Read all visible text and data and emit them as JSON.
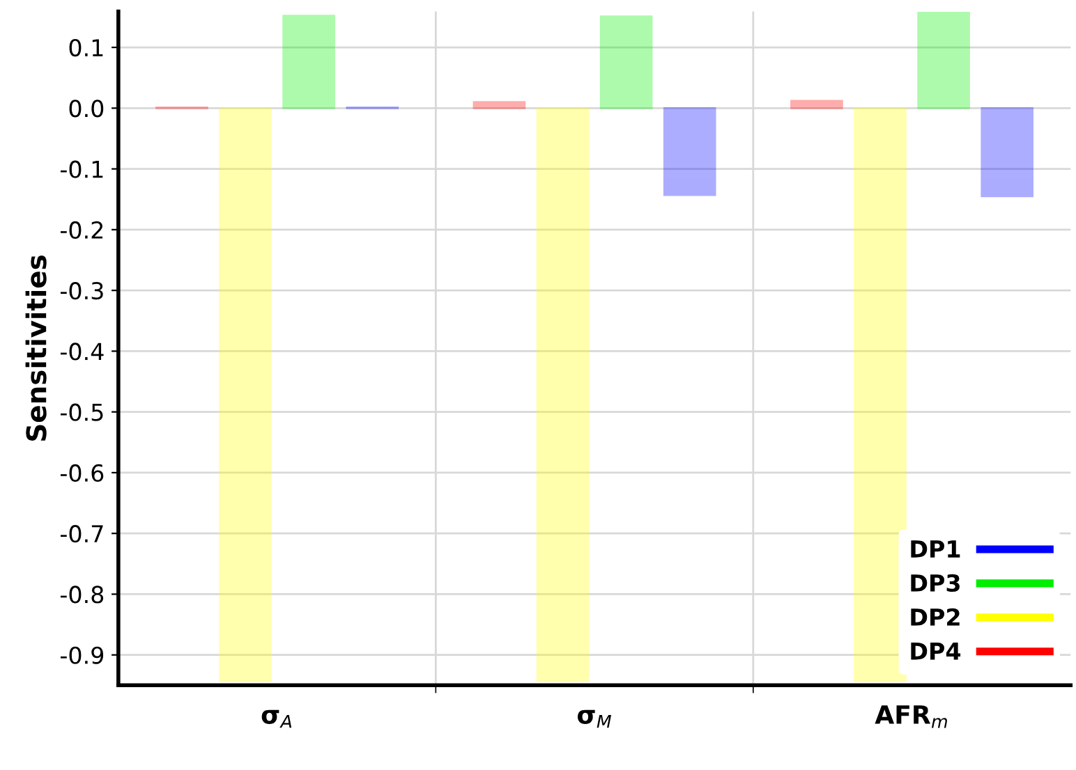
{
  "chart_data": {
    "type": "bar",
    "ylabel": "Sensitivities",
    "categories": [
      "σ$_{A}$",
      "σ$_{M}$",
      "AFR$_{m}$"
    ],
    "series": [
      {
        "name": "DP4",
        "color": "#ff0000",
        "values": [
          0.001,
          0.01,
          0.012
        ]
      },
      {
        "name": "DP2",
        "color": "#ffff00",
        "values": [
          -0.943,
          -0.943,
          -0.943
        ]
      },
      {
        "name": "DP3",
        "color": "#00ee00",
        "values": [
          0.152,
          0.151,
          0.157
        ]
      },
      {
        "name": "DP1",
        "color": "#0000ff",
        "values": [
          0.001,
          -0.143,
          -0.145
        ]
      }
    ],
    "ylim": [
      -0.95,
      0.159
    ],
    "yticks": [
      0.1,
      {
        "value": 0,
        "label": "0.0"
      },
      {
        "value": -0.1,
        "label": "-0.1"
      },
      {
        "value": -0.2,
        "label": "-0.2"
      },
      {
        "value": -0.3,
        "label": "-0.3"
      },
      {
        "value": -0.4,
        "label": "-0.4"
      },
      {
        "value": -0.5,
        "label": "-0.5"
      },
      {
        "value": -0.6,
        "label": "-0.6"
      },
      {
        "value": -0.7,
        "label": "-0.7"
      },
      {
        "value": -0.8,
        "label": "-0.8"
      },
      {
        "value": -0.9,
        "label": "-0.9"
      }
    ],
    "grid": true,
    "legend": "bottom right"
  }
}
